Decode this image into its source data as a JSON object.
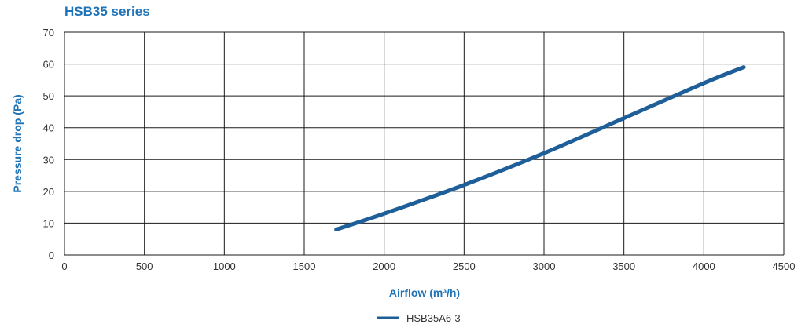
{
  "chart_data": {
    "type": "line",
    "title": "HSB35 series",
    "xlabel": "Airflow (m³/h)",
    "ylabel": "Pressure drop (Pa)",
    "xlim": [
      0,
      4500
    ],
    "ylim": [
      0,
      70
    ],
    "x_ticks": [
      0,
      500,
      1000,
      1500,
      2000,
      2500,
      3000,
      3500,
      4000,
      4500
    ],
    "y_ticks": [
      0,
      10,
      20,
      30,
      40,
      50,
      60,
      70
    ],
    "grid": true,
    "legend_position": "bottom-center",
    "series": [
      {
        "name": "HSB35A6-3",
        "color": "#1f5f99",
        "x": [
          1700,
          2000,
          2500,
          3000,
          3500,
          4000,
          4250
        ],
        "y": [
          8,
          13,
          22,
          32,
          43,
          54,
          59
        ]
      }
    ]
  },
  "colors": {
    "accent": "#1f73b7",
    "series_line": "#1f5f99",
    "grid": "#1a1a1a"
  }
}
